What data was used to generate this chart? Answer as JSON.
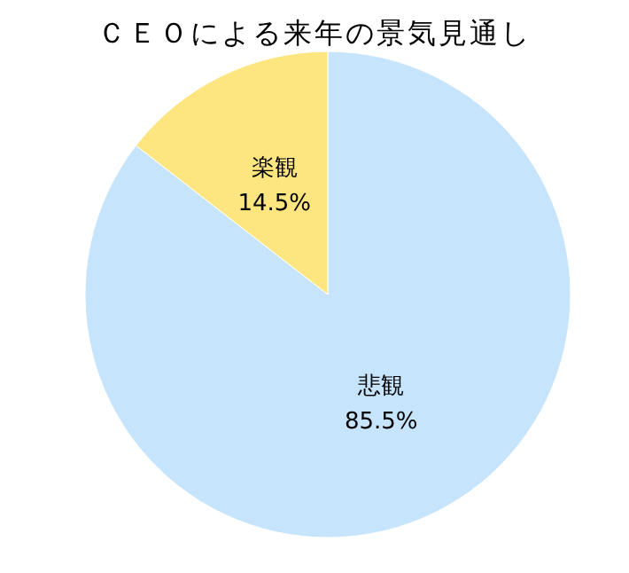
{
  "chart_data": {
    "type": "pie",
    "title": "ＣＥＯによる来年の景気見通し",
    "categories": [
      "悲観",
      "楽観"
    ],
    "values": [
      85.5,
      14.5
    ],
    "colors": [
      "#c6e4fb",
      "#fde680"
    ],
    "value_labels": [
      "85.5%",
      "14.5%"
    ]
  }
}
